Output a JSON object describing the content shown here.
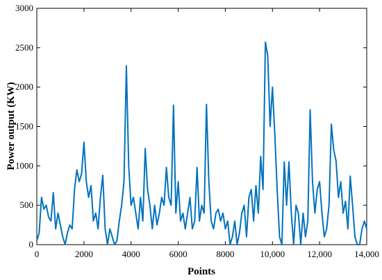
{
  "chart_data": {
    "type": "line",
    "xlabel": "Points",
    "ylabel": "Power output (KW)",
    "x": [
      0,
      100,
      200,
      300,
      400,
      500,
      600,
      700,
      800,
      900,
      1000,
      1100,
      1200,
      1300,
      1400,
      1500,
      1600,
      1700,
      1800,
      1900,
      2000,
      2100,
      2200,
      2300,
      2400,
      2500,
      2600,
      2700,
      2800,
      2900,
      3000,
      3100,
      3200,
      3300,
      3400,
      3500,
      3600,
      3700,
      3800,
      3900,
      4000,
      4100,
      4200,
      4300,
      4400,
      4500,
      4600,
      4700,
      4800,
      4900,
      5000,
      5100,
      5200,
      5300,
      5400,
      5500,
      5600,
      5700,
      5800,
      5900,
      6000,
      6100,
      6200,
      6300,
      6400,
      6500,
      6600,
      6700,
      6800,
      6900,
      7000,
      7100,
      7200,
      7300,
      7400,
      7500,
      7600,
      7700,
      7800,
      7900,
      8000,
      8100,
      8200,
      8300,
      8400,
      8500,
      8600,
      8700,
      8800,
      8900,
      9000,
      9100,
      9200,
      9300,
      9400,
      9500,
      9600,
      9700,
      9800,
      9900,
      10000,
      10100,
      10200,
      10300,
      10400,
      10500,
      10600,
      10700,
      10800,
      10900,
      11000,
      11100,
      11200,
      11300,
      11400,
      11500,
      11600,
      11700,
      11800,
      11900,
      12000,
      12100,
      12200,
      12300,
      12400,
      12500,
      12600,
      12700,
      12800,
      12900,
      13000,
      13100,
      13200,
      13300,
      13400,
      13500,
      13600,
      13700,
      13800,
      13900,
      14000
    ],
    "series": [
      {
        "color": "#0072bd",
        "values": [
          50,
          150,
          600,
          450,
          500,
          350,
          300,
          660,
          200,
          400,
          250,
          100,
          0,
          150,
          250,
          200,
          700,
          950,
          800,
          900,
          1300,
          800,
          600,
          750,
          300,
          400,
          200,
          600,
          880,
          200,
          0,
          200,
          100,
          0,
          50,
          300,
          500,
          800,
          2270,
          1000,
          500,
          600,
          400,
          200,
          600,
          300,
          1220,
          700,
          500,
          200,
          500,
          250,
          400,
          600,
          500,
          980,
          600,
          500,
          1770,
          400,
          800,
          300,
          400,
          200,
          400,
          600,
          200,
          300,
          980,
          300,
          500,
          400,
          1780,
          800,
          300,
          200,
          400,
          450,
          300,
          400,
          200,
          300,
          0,
          100,
          300,
          0,
          150,
          400,
          500,
          100,
          600,
          700,
          300,
          750,
          400,
          1120,
          700,
          2570,
          2400,
          1500,
          2000,
          1400,
          700,
          100,
          0,
          1050,
          500,
          1050,
          400,
          0,
          500,
          400,
          0,
          400,
          100,
          300,
          1710,
          800,
          400,
          700,
          800,
          400,
          100,
          200,
          500,
          1530,
          1200,
          1060,
          600,
          800,
          400,
          550,
          200,
          870,
          500,
          100,
          0,
          0,
          200,
          300,
          200
        ]
      }
    ],
    "xlim": [
      0,
      14000
    ],
    "xticks": [
      0,
      2000,
      4000,
      6000,
      8000,
      {
        "value": 10000,
        "label": "10,000"
      },
      {
        "value": 12000,
        "label": "12,000"
      },
      {
        "value": 14000,
        "label": "14,000"
      }
    ],
    "ylim": [
      0,
      3000
    ],
    "yticks": [
      0,
      500,
      1000,
      1500,
      2000,
      2500,
      3000
    ]
  }
}
